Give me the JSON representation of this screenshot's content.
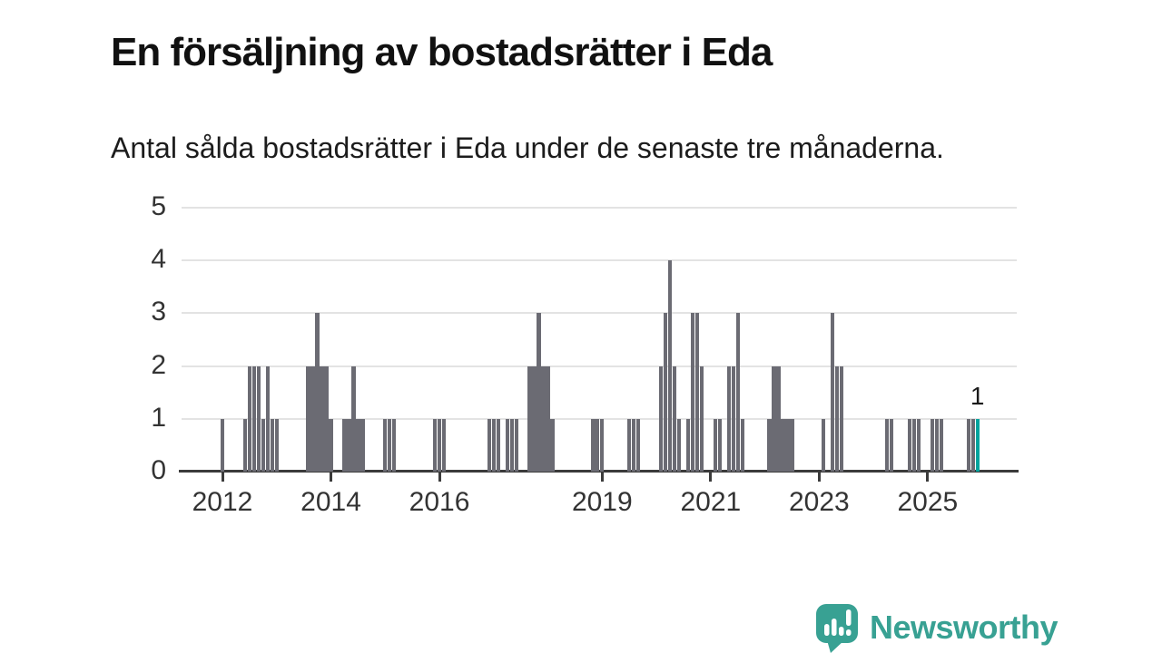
{
  "header": {
    "title": "En försäljning av bostadsrätter i Eda",
    "subtitle": "Antal sålda bostadsrätter i Eda under de senaste tre månaderna."
  },
  "chart_data": {
    "type": "bar",
    "title": "En försäljning av bostadsrätter i Eda",
    "subtitle": "Antal sålda bostadsrätter i Eda under de senaste tre månaderna.",
    "ylim": [
      0,
      5
    ],
    "y_ticks": [
      0,
      1,
      2,
      3,
      4,
      5
    ],
    "x_ticks": [
      2012,
      2014,
      2016,
      2019,
      2021,
      2023,
      2025
    ],
    "grid": true,
    "highlight_label": "1",
    "colors": {
      "bar": "#6b6b73",
      "highlight": "#00a49e",
      "brand": "#38a193"
    },
    "points": [
      {
        "m": "2012-01",
        "v": 1
      },
      {
        "m": "2012-06",
        "v": 1
      },
      {
        "m": "2012-07",
        "v": 2
      },
      {
        "m": "2012-08",
        "v": 2
      },
      {
        "m": "2012-09",
        "v": 2
      },
      {
        "m": "2012-10",
        "v": 1
      },
      {
        "m": "2012-11",
        "v": 2
      },
      {
        "m": "2012-12",
        "v": 1
      },
      {
        "m": "2013-01",
        "v": 1
      },
      {
        "m": "2013-08",
        "v": 2
      },
      {
        "m": "2013-09",
        "v": 2
      },
      {
        "m": "2013-10",
        "v": 3
      },
      {
        "m": "2013-11",
        "v": 2
      },
      {
        "m": "2013-12",
        "v": 2
      },
      {
        "m": "2014-01",
        "v": 1
      },
      {
        "m": "2014-04",
        "v": 1
      },
      {
        "m": "2014-05",
        "v": 1
      },
      {
        "m": "2014-06",
        "v": 2
      },
      {
        "m": "2014-07",
        "v": 1
      },
      {
        "m": "2014-08",
        "v": 1
      },
      {
        "m": "2015-01",
        "v": 1
      },
      {
        "m": "2015-02",
        "v": 1
      },
      {
        "m": "2015-03",
        "v": 1
      },
      {
        "m": "2015-12",
        "v": 1
      },
      {
        "m": "2016-01",
        "v": 1
      },
      {
        "m": "2016-02",
        "v": 1
      },
      {
        "m": "2016-12",
        "v": 1
      },
      {
        "m": "2017-01",
        "v": 1
      },
      {
        "m": "2017-02",
        "v": 1
      },
      {
        "m": "2017-04",
        "v": 1
      },
      {
        "m": "2017-05",
        "v": 1
      },
      {
        "m": "2017-06",
        "v": 1
      },
      {
        "m": "2017-09",
        "v": 2
      },
      {
        "m": "2017-10",
        "v": 2
      },
      {
        "m": "2017-11",
        "v": 3
      },
      {
        "m": "2017-12",
        "v": 2
      },
      {
        "m": "2018-01",
        "v": 2
      },
      {
        "m": "2018-02",
        "v": 1
      },
      {
        "m": "2018-11",
        "v": 1
      },
      {
        "m": "2018-12",
        "v": 1
      },
      {
        "m": "2019-01",
        "v": 1
      },
      {
        "m": "2019-07",
        "v": 1
      },
      {
        "m": "2019-08",
        "v": 1
      },
      {
        "m": "2019-09",
        "v": 1
      },
      {
        "m": "2020-02",
        "v": 2
      },
      {
        "m": "2020-03",
        "v": 3
      },
      {
        "m": "2020-04",
        "v": 4
      },
      {
        "m": "2020-05",
        "v": 2
      },
      {
        "m": "2020-06",
        "v": 1
      },
      {
        "m": "2020-08",
        "v": 1
      },
      {
        "m": "2020-09",
        "v": 3
      },
      {
        "m": "2020-10",
        "v": 3
      },
      {
        "m": "2020-11",
        "v": 2
      },
      {
        "m": "2021-02",
        "v": 1
      },
      {
        "m": "2021-03",
        "v": 1
      },
      {
        "m": "2021-05",
        "v": 2
      },
      {
        "m": "2021-06",
        "v": 2
      },
      {
        "m": "2021-07",
        "v": 3
      },
      {
        "m": "2021-08",
        "v": 1
      },
      {
        "m": "2022-02",
        "v": 1
      },
      {
        "m": "2022-03",
        "v": 2
      },
      {
        "m": "2022-04",
        "v": 2
      },
      {
        "m": "2022-05",
        "v": 1
      },
      {
        "m": "2022-06",
        "v": 1
      },
      {
        "m": "2022-07",
        "v": 1
      },
      {
        "m": "2023-02",
        "v": 1
      },
      {
        "m": "2023-04",
        "v": 3
      },
      {
        "m": "2023-05",
        "v": 2
      },
      {
        "m": "2023-06",
        "v": 2
      },
      {
        "m": "2024-04",
        "v": 1
      },
      {
        "m": "2024-05",
        "v": 1
      },
      {
        "m": "2024-09",
        "v": 1
      },
      {
        "m": "2024-10",
        "v": 1
      },
      {
        "m": "2024-11",
        "v": 1
      },
      {
        "m": "2025-02",
        "v": 1
      },
      {
        "m": "2025-03",
        "v": 1
      },
      {
        "m": "2025-04",
        "v": 1
      },
      {
        "m": "2025-10",
        "v": 1
      },
      {
        "m": "2025-11",
        "v": 1
      },
      {
        "m": "2025-12",
        "v": 1,
        "h": true
      }
    ]
  },
  "footer": {
    "brand": "Newsworthy",
    "brand_color": "#38a193"
  }
}
